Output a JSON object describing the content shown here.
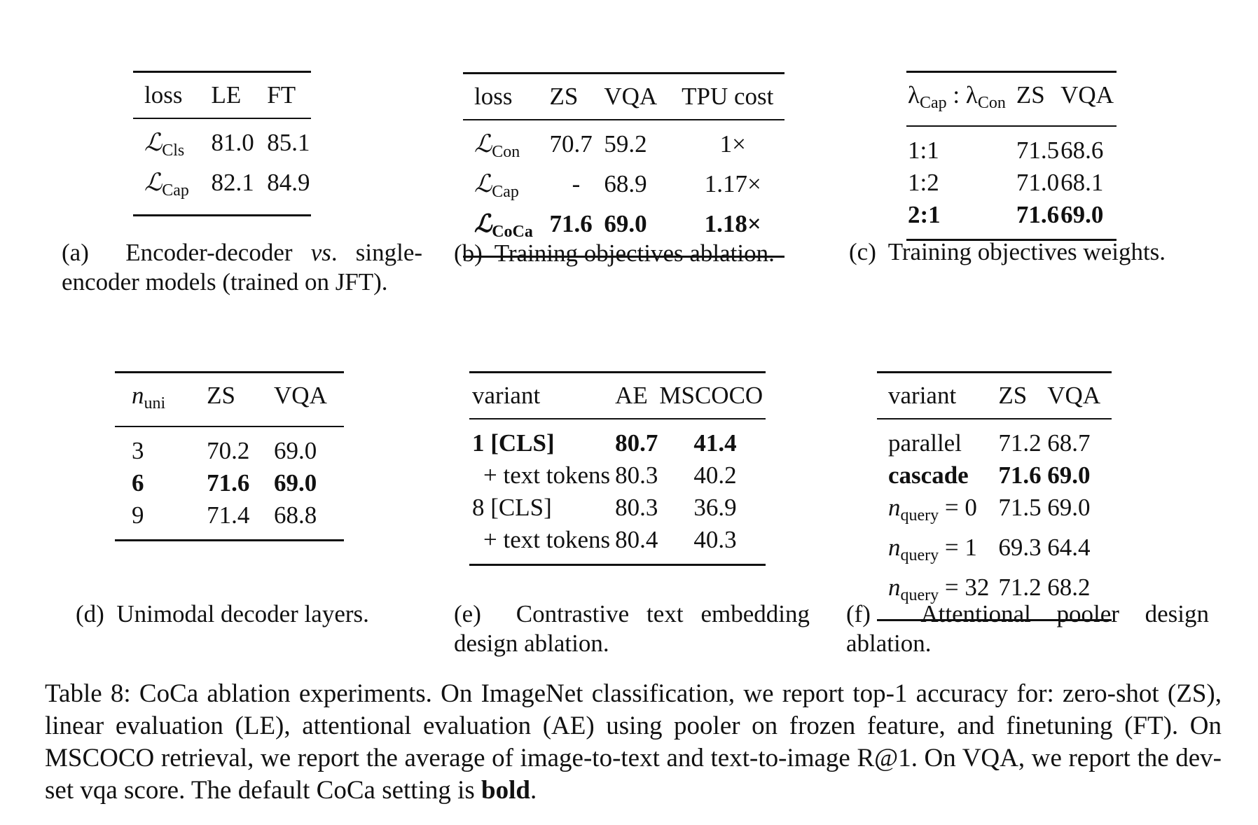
{
  "tables": {
    "a": {
      "headers": [
        "loss",
        "LE",
        "FT"
      ],
      "rows": [
        {
          "loss_symbol": "ℒ",
          "loss_sub": "Cls",
          "le": "81.0",
          "ft": "85.1"
        },
        {
          "loss_symbol": "ℒ",
          "loss_sub": "Cap",
          "le": "82.1",
          "ft": "84.9"
        }
      ],
      "caption_label": "(a)",
      "caption_text_1": "Encoder-decoder",
      "caption_vs": "vs",
      "caption_text_2": ". single-encoder models (trained on JFT)."
    },
    "b": {
      "headers": [
        "loss",
        "ZS",
        "VQA",
        "TPU cost"
      ],
      "rows": [
        {
          "loss_symbol": "ℒ",
          "loss_sub": "Con",
          "zs": "70.7",
          "vqa": "59.2",
          "tpu": "1×"
        },
        {
          "loss_symbol": "ℒ",
          "loss_sub": "Cap",
          "zs": "-",
          "vqa": "68.9",
          "tpu": "1.17×"
        },
        {
          "loss_symbol": "ℒ",
          "loss_sub": "CoCa",
          "zs": "71.6",
          "vqa": "69.0",
          "tpu": "1.18×"
        }
      ],
      "caption_label": "(b)",
      "caption_text": "Training objectives ablation."
    },
    "c": {
      "header_lambda": "λ",
      "header_cap": "Cap",
      "header_colon": " : ",
      "header_con": "Con",
      "headers": [
        "ZS",
        "VQA"
      ],
      "rows": [
        {
          "ratio": "1:1",
          "zs": "71.5",
          "vqa": "68.6"
        },
        {
          "ratio": "1:2",
          "zs": "71.0",
          "vqa": "68.1"
        },
        {
          "ratio": "2:1",
          "zs": "71.6",
          "vqa": "69.0"
        }
      ],
      "caption_label": "(c)",
      "caption_text": "Training objectives weights."
    },
    "d": {
      "header_n": "n",
      "header_n_sub": "uni",
      "headers": [
        "ZS",
        "VQA"
      ],
      "rows": [
        {
          "n": "3",
          "zs": "70.2",
          "vqa": "69.0"
        },
        {
          "n": "6",
          "zs": "71.6",
          "vqa": "69.0"
        },
        {
          "n": "9",
          "zs": "71.4",
          "vqa": "68.8"
        }
      ],
      "caption_label": "(d)",
      "caption_text": "Unimodal decoder layers."
    },
    "e": {
      "headers": [
        "variant",
        "AE",
        "MSCOCO"
      ],
      "rows": [
        {
          "variant": "1 [CLS]",
          "ae": "80.7",
          "mscoco": "41.4"
        },
        {
          "variant": "+ text tokens",
          "ae": "80.3",
          "mscoco": "40.2"
        },
        {
          "variant": "8 [CLS]",
          "ae": "80.3",
          "mscoco": "36.9"
        },
        {
          "variant": "+ text tokens",
          "ae": "80.4",
          "mscoco": "40.3"
        }
      ],
      "caption_label": "(e)",
      "caption_text": "Contrastive text embedding design ablation."
    },
    "f": {
      "headers": [
        "variant",
        "ZS",
        "VQA"
      ],
      "rows": [
        {
          "variant": "parallel",
          "zs": "71.2",
          "vqa": "68.7"
        },
        {
          "variant": "cascade",
          "zs": "71.6",
          "vqa": "69.0"
        },
        {
          "variant_n": "n",
          "variant_sub": "query",
          "variant_eq": " = 0",
          "zs": "71.5",
          "vqa": "69.0"
        },
        {
          "variant_n": "n",
          "variant_sub": "query",
          "variant_eq": " = 1",
          "zs": "69.3",
          "vqa": "64.4"
        },
        {
          "variant_n": "n",
          "variant_sub": "query",
          "variant_eq": " = 32",
          "zs": "71.2",
          "vqa": "68.2"
        }
      ],
      "caption_label": "(f)",
      "caption_text": "Attentional pooler design ablation."
    }
  },
  "main_caption": {
    "text": "Table 8: CoCa ablation experiments. On ImageNet classification, we report top-1 accuracy for: zero-shot (ZS), linear evaluation (LE), attentional evaluation (AE) using pooler on frozen feature, and finetuning (FT). On MSCOCO retrieval, we report the average of image-to-text and text-to-image R@1. On VQA, we report the dev-set vqa score. The default CoCa setting is ",
    "bold_word": "bold",
    "end": "."
  }
}
